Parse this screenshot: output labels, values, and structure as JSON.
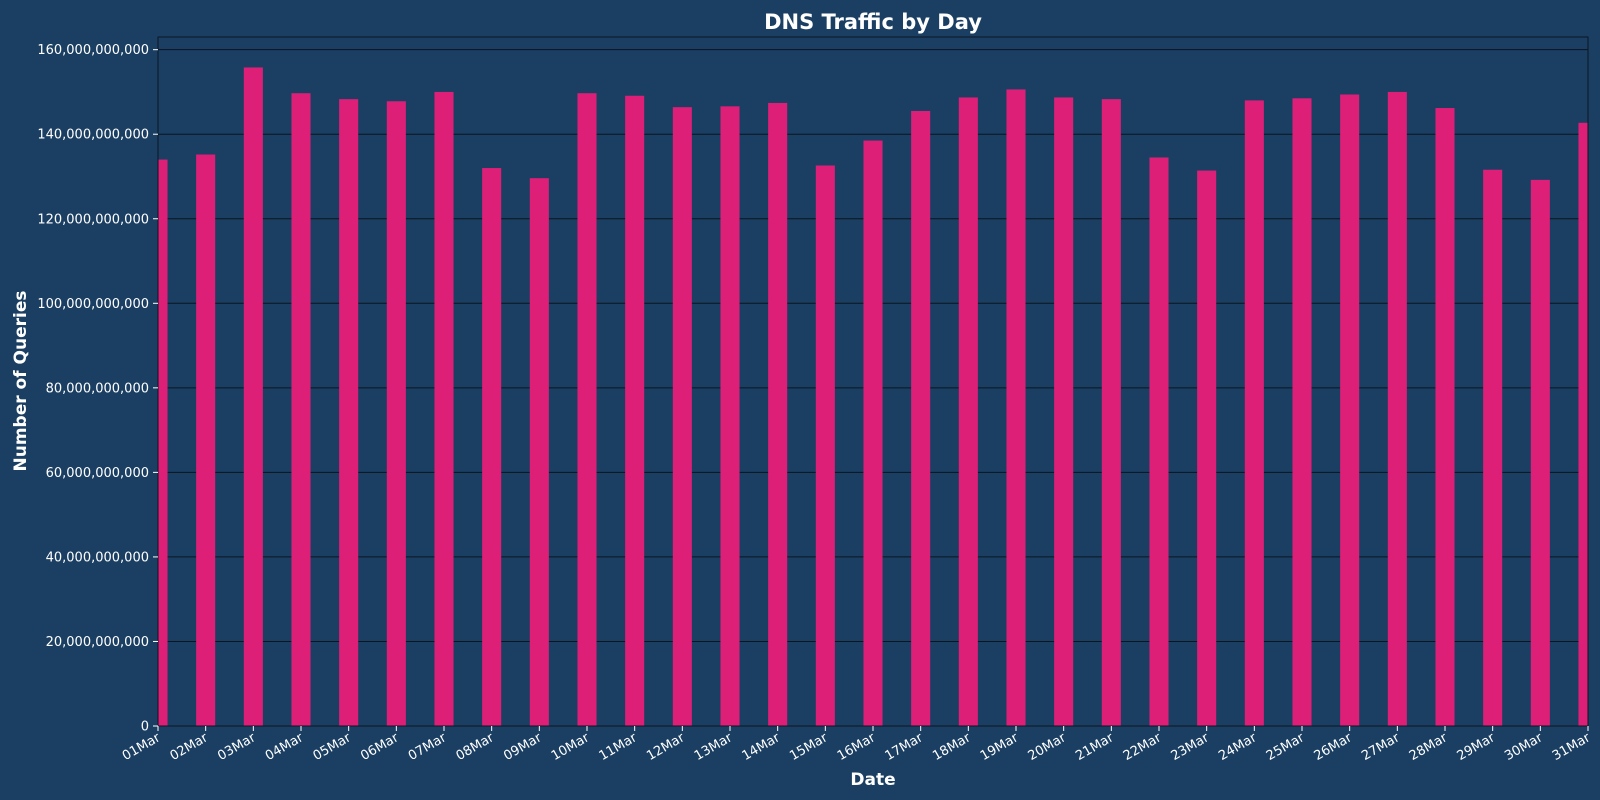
{
  "colors": {
    "background": "#1b3f63",
    "bar": "#dd1f77",
    "text": "#ffffff",
    "grid": "#0b1620"
  },
  "chart_data": {
    "type": "bar",
    "title": "DNS Traffic by Day",
    "xlabel": "Date",
    "ylabel": "Number of Queries",
    "ylim": [
      0,
      163000000000
    ],
    "yticks": [
      0,
      20000000000,
      40000000000,
      60000000000,
      80000000000,
      100000000000,
      120000000000,
      140000000000,
      160000000000
    ],
    "ytick_labels": [
      "0",
      "20,000,000,000",
      "40,000,000,000",
      "60,000,000,000",
      "80,000,000,000",
      "100,000,000,000",
      "120,000,000,000",
      "140,000,000,000",
      "160,000,000,000"
    ],
    "grid": true,
    "categories": [
      "01Mar",
      "02Mar",
      "03Mar",
      "04Mar",
      "05Mar",
      "06Mar",
      "07Mar",
      "08Mar",
      "09Mar",
      "10Mar",
      "11Mar",
      "12Mar",
      "13Mar",
      "14Mar",
      "15Mar",
      "16Mar",
      "17Mar",
      "18Mar",
      "19Mar",
      "20Mar",
      "21Mar",
      "22Mar",
      "23Mar",
      "24Mar",
      "25Mar",
      "26Mar",
      "27Mar",
      "28Mar",
      "29Mar",
      "30Mar",
      "31Mar"
    ],
    "values": [
      134000000000,
      135200000000,
      155800000000,
      149700000000,
      148300000000,
      147800000000,
      150000000000,
      132000000000,
      129600000000,
      149700000000,
      149100000000,
      146400000000,
      146600000000,
      147400000000,
      132600000000,
      138500000000,
      145500000000,
      148700000000,
      150600000000,
      148700000000,
      148300000000,
      134500000000,
      131400000000,
      148000000000,
      148500000000,
      149400000000,
      150000000000,
      146200000000,
      131600000000,
      129200000000,
      142700000000
    ]
  }
}
